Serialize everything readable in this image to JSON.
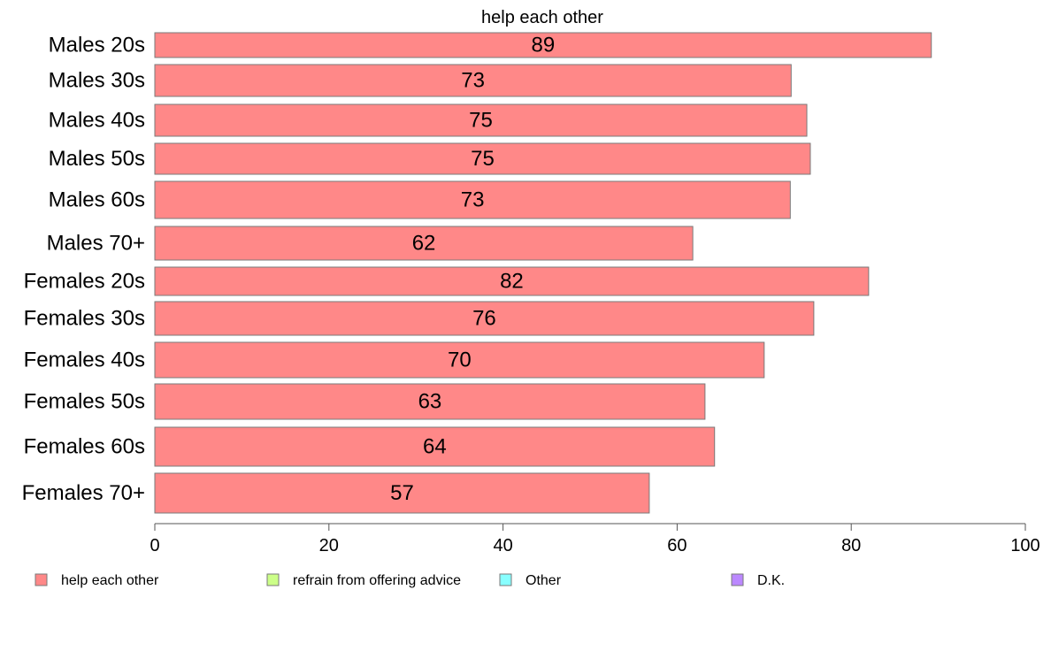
{
  "chart_data": {
    "type": "bar",
    "orientation": "horizontal",
    "title": "help each other",
    "categories": [
      "Males 20s",
      "Males 30s",
      "Males 40s",
      "Males 50s",
      "Males 60s",
      "Males 70+",
      "Females 20s",
      "Females 30s",
      "Females 40s",
      "Females 50s",
      "Females 60s",
      "Females 70+"
    ],
    "series": [
      {
        "name": "help each other",
        "color": "#ff8888",
        "values": [
          89.2,
          73.1,
          74.9,
          75.3,
          73.0,
          61.8,
          82.0,
          75.7,
          70.0,
          63.2,
          64.3,
          56.8
        ]
      }
    ],
    "data_labels": [
      "89",
      "73",
      "75",
      "75",
      "73",
      "62",
      "82",
      "76",
      "70",
      "63",
      "64",
      "57"
    ],
    "xlim": [
      0,
      100
    ],
    "x_ticks": [
      "0",
      "20",
      "40",
      "60",
      "80",
      "100"
    ],
    "grid": false,
    "legend_position": "bottom",
    "legend": [
      {
        "label": "help each other",
        "color": "#ff8888"
      },
      {
        "label": "refrain from offering advice",
        "color": "#ccff88"
      },
      {
        "label": "Other",
        "color": "#88ffff"
      },
      {
        "label": "D.K.",
        "color": "#bb88ff"
      }
    ]
  }
}
